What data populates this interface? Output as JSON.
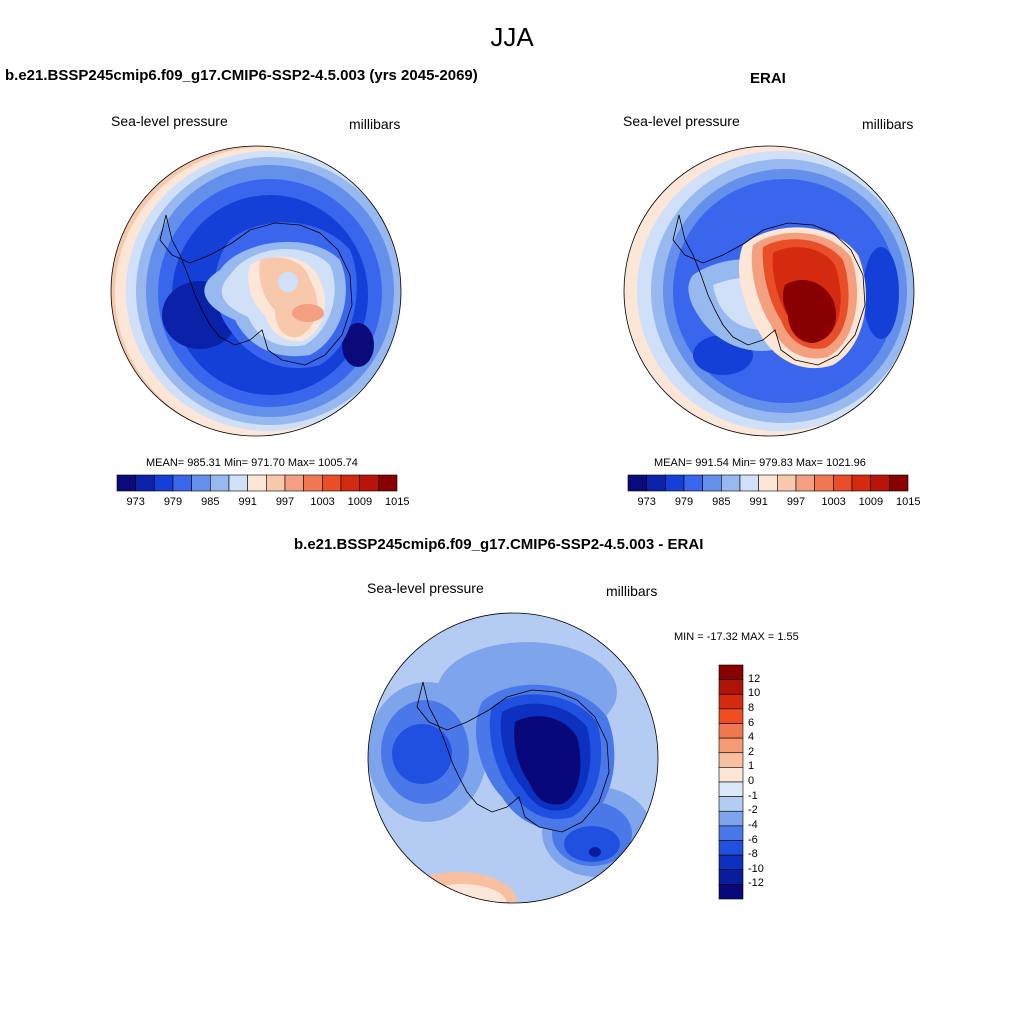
{
  "page_title": "JJA",
  "panels": {
    "model": {
      "title": "b.e21.BSSP245cmip6.f09_g17.CMIP6-SSP2-4.5.003 (yrs 2045-2069)",
      "variable": "Sea-level pressure",
      "units": "millibars",
      "stats": "MEAN= 985.31  Min= 971.70  Max= 1005.74"
    },
    "obs": {
      "title": "ERAI",
      "variable": "Sea-level pressure",
      "units": "millibars",
      "stats": "MEAN= 991.54  Min= 979.83  Max= 1021.96"
    },
    "diff": {
      "title": "b.e21.BSSP245cmip6.f09_g17.CMIP6-SSP2-4.5.003 - ERAI",
      "variable": "Sea-level pressure",
      "units": "millibars",
      "stats": "MIN = -17.32 MAX =   1.55"
    }
  },
  "colorbars": {
    "abs": {
      "colors": [
        "#0a0a7a",
        "#0a22aa",
        "#1440d8",
        "#3a66ee",
        "#6490ec",
        "#98b8f0",
        "#cfe0f8",
        "#fce6d8",
        "#f8c8ac",
        "#f4a080",
        "#f07850",
        "#e84e28",
        "#d42a10",
        "#b81408",
        "#880000"
      ],
      "tick_labels": [
        "973",
        "979",
        "985",
        "991",
        "997",
        "1003",
        "1009",
        "1015"
      ]
    },
    "diff": {
      "colors": [
        "#880000",
        "#b01408",
        "#d42a10",
        "#f04e20",
        "#f07850",
        "#f49a74",
        "#f8c0a0",
        "#fce6d8",
        "#dce8fa",
        "#b4ccf4",
        "#7ea4ec",
        "#4a78e8",
        "#2050e0",
        "#0c30c0",
        "#081c9c",
        "#08087a"
      ],
      "tick_labels": [
        "12",
        "10",
        "8",
        "6",
        "4",
        "2",
        "1",
        "0",
        "-1",
        "-2",
        "-4",
        "-6",
        "-8",
        "-10",
        "-12"
      ]
    }
  }
}
